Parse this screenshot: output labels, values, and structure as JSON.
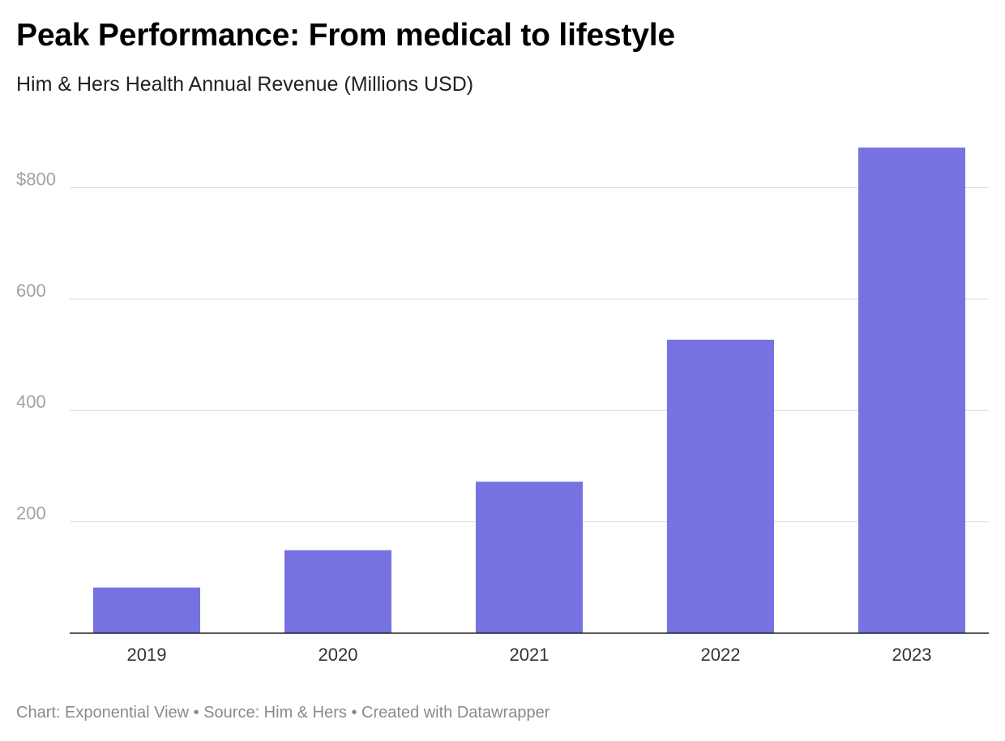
{
  "chart_data": {
    "type": "bar",
    "title": "Peak Performance: From medical to lifestyle",
    "subtitle": "Him & Hers Health Annual Revenue (Millions USD)",
    "categories": [
      "2019",
      "2020",
      "2021",
      "2022",
      "2023"
    ],
    "values": [
      82,
      149,
      272,
      527,
      872
    ],
    "ylim": [
      0,
      872
    ],
    "yticks": [
      200,
      400,
      600,
      800
    ],
    "ytick_labels": [
      "200",
      "400",
      "600",
      "$800"
    ],
    "grid": true,
    "bar_color": "#7772e2",
    "footer": "Chart: Exponential View • Source: Him & Hers • Created with Datawrapper"
  }
}
